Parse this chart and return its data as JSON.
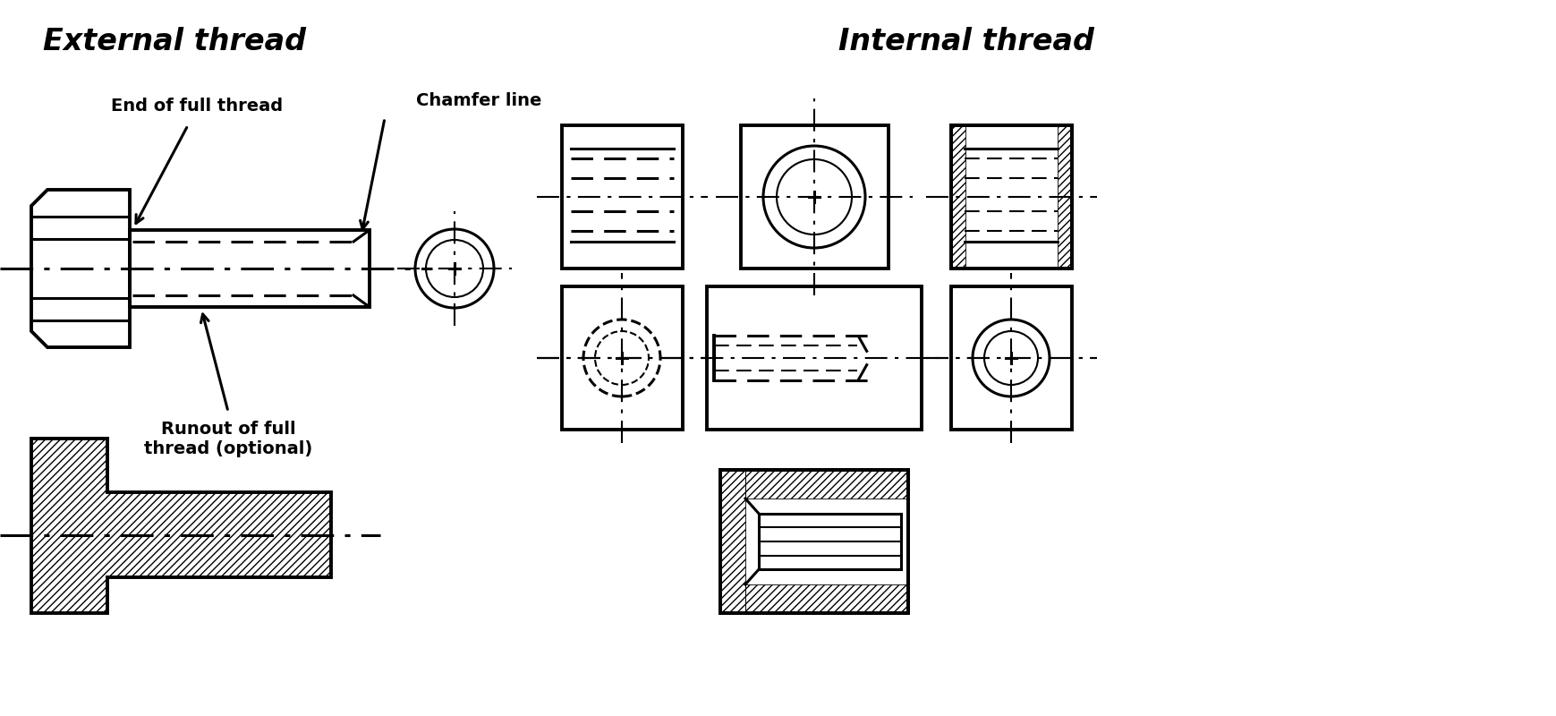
{
  "title_left": "External thread",
  "title_right": "Internal thread",
  "label_end_full_thread": "End of full thread",
  "label_chamfer_line": "Chamfer line",
  "label_runout": "Runout of full\nthread (optional)",
  "bg_color": "#ffffff",
  "lc": "#000000"
}
